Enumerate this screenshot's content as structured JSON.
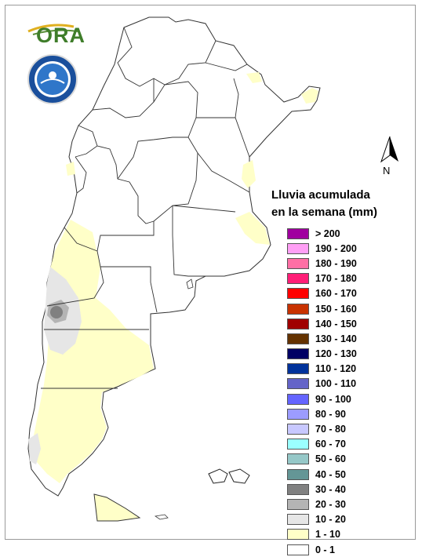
{
  "logo": {
    "text": "ORA"
  },
  "seal": {
    "name": "SERVICIO METEOROLÓGICO NACIONAL · ARGENTINA"
  },
  "north_arrow": {
    "label": "N"
  },
  "legend": {
    "title_line1": "Lluvia acumulada",
    "title_line2": "en la semana (mm)",
    "items": [
      {
        "label": "> 200",
        "color": "#a0009f"
      },
      {
        "label": "190 - 200",
        "color": "#ff9ff5"
      },
      {
        "label": "180 - 190",
        "color": "#ff6fa5"
      },
      {
        "label": "170 - 180",
        "color": "#ff1e77"
      },
      {
        "label": "160 - 170",
        "color": "#ff0000"
      },
      {
        "label": "150 - 160",
        "color": "#c83200"
      },
      {
        "label": "140 - 150",
        "color": "#a00000"
      },
      {
        "label": "130 - 140",
        "color": "#643200"
      },
      {
        "label": "120 - 130",
        "color": "#000064"
      },
      {
        "label": "110 - 120",
        "color": "#00329b"
      },
      {
        "label": "100 - 110",
        "color": "#6464c8"
      },
      {
        "label": "90 - 100",
        "color": "#6464ff"
      },
      {
        "label": "80 - 90",
        "color": "#9c9cff"
      },
      {
        "label": "70 - 80",
        "color": "#c8c8ff"
      },
      {
        "label": "60 - 70",
        "color": "#9bffff"
      },
      {
        "label": "50 - 60",
        "color": "#96c8c8"
      },
      {
        "label": "40 - 50",
        "color": "#649696"
      },
      {
        "label": "30 - 40",
        "color": "#808080"
      },
      {
        "label": "20 - 30",
        "color": "#b4b4b4"
      },
      {
        "label": "10 - 20",
        "color": "#e6e6e6"
      },
      {
        "label": "1 - 10",
        "color": "#ffffc8"
      },
      {
        "label": "0 - 1",
        "color": "#ffffff"
      }
    ]
  }
}
